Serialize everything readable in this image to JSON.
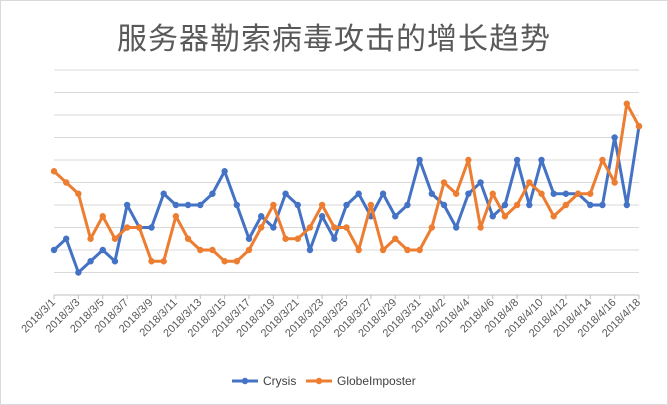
{
  "chart_data": {
    "type": "line",
    "title": "服务器勒索病毒攻击的增长趋势",
    "x": [
      "2018/3/1",
      "2018/3/2",
      "2018/3/3",
      "2018/3/4",
      "2018/3/5",
      "2018/3/6",
      "2018/3/7",
      "2018/3/8",
      "2018/3/9",
      "2018/3/10",
      "2018/3/11",
      "2018/3/12",
      "2018/3/13",
      "2018/3/14",
      "2018/3/15",
      "2018/3/16",
      "2018/3/17",
      "2018/3/18",
      "2018/3/19",
      "2018/3/20",
      "2018/3/21",
      "2018/3/22",
      "2018/3/23",
      "2018/3/24",
      "2018/3/25",
      "2018/3/26",
      "2018/3/27",
      "2018/3/28",
      "2018/3/29",
      "2018/3/30",
      "2018/3/31",
      "2018/4/1",
      "2018/4/2",
      "2018/4/3",
      "2018/4/4",
      "2018/4/5",
      "2018/4/6",
      "2018/4/7",
      "2018/4/8",
      "2018/4/9",
      "2018/4/10",
      "2018/4/11",
      "2018/4/12",
      "2018/4/13",
      "2018/4/14",
      "2018/4/15",
      "2018/4/16",
      "2018/4/17",
      "2018/4/18"
    ],
    "tick_labels": [
      "2018/3/1",
      "2018/3/3",
      "2018/3/5",
      "2018/3/7",
      "2018/3/9",
      "2018/3/11",
      "2018/3/13",
      "2018/3/15",
      "2018/3/17",
      "2018/3/19",
      "2018/3/21",
      "2018/3/23",
      "2018/3/25",
      "2018/3/27",
      "2018/3/29",
      "2018/3/31",
      "2018/4/2",
      "2018/4/4",
      "2018/4/6",
      "2018/4/8",
      "2018/4/10",
      "2018/4/12",
      "2018/4/14",
      "2018/4/16",
      "2018/4/18"
    ],
    "ylim": [
      0,
      20
    ],
    "yticks": [
      0,
      2,
      4,
      6,
      8,
      10,
      12,
      14,
      16,
      18,
      20
    ],
    "y_tick_labels_shown": false,
    "grid": "horizontal",
    "legend_position": "bottom",
    "series": [
      {
        "name": "Crysis",
        "color": "#4472C4",
        "values": [
          4,
          5,
          2,
          3,
          4,
          3,
          8,
          6,
          6,
          9,
          8,
          8,
          8,
          9,
          11,
          8,
          5,
          7,
          6,
          9,
          8,
          4,
          7,
          5,
          8,
          9,
          7,
          9,
          7,
          8,
          12,
          9,
          8,
          6,
          9,
          10,
          7,
          8,
          12,
          8,
          12,
          9,
          9,
          9,
          8,
          8,
          14,
          8,
          15
        ]
      },
      {
        "name": "GlobeImposter",
        "color": "#ED7D31",
        "values": [
          11,
          10,
          9,
          5,
          7,
          5,
          6,
          6,
          3,
          3,
          7,
          5,
          4,
          4,
          3,
          3,
          4,
          6,
          8,
          5,
          5,
          6,
          8,
          6,
          6,
          4,
          8,
          4,
          5,
          4,
          4,
          6,
          10,
          9,
          12,
          6,
          9,
          7,
          8,
          10,
          9,
          7,
          8,
          9,
          9,
          12,
          10,
          17,
          15
        ]
      }
    ]
  }
}
